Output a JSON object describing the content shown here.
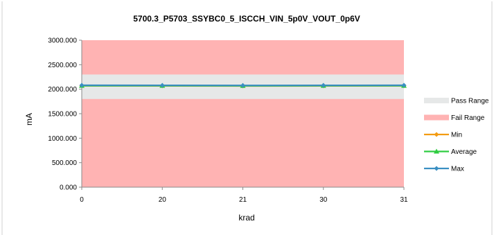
{
  "chart_data": {
    "type": "line",
    "title": "5700.3_P5703_SSYBC0_5_ISCCH_VIN_5p0V_VOUT_0p6V",
    "xlabel": "krad",
    "ylabel": "mA",
    "categories": [
      "0",
      "20",
      "21",
      "30",
      "31"
    ],
    "y_tick_labels": [
      "0.000",
      "500.000",
      "1000.000",
      "1500.000",
      "2000.000",
      "2500.000",
      "3000.000"
    ],
    "ylim": [
      0,
      3000
    ],
    "grid": false,
    "legend_position": "right",
    "bands": [
      {
        "name": "Pass Range",
        "from": 1800,
        "to": 2300,
        "color": "#e6e8e8"
      },
      {
        "name": "Fail Range",
        "from": 0,
        "to": 3000,
        "color": "#ffb3b3"
      }
    ],
    "series": [
      {
        "name": "Min",
        "values": [
          2070,
          2068,
          2066,
          2068,
          2069
        ],
        "color": "#f39c12",
        "marker": "diamond"
      },
      {
        "name": "Average",
        "values": [
          2072,
          2071,
          2070,
          2071,
          2072
        ],
        "color": "#2ecc40",
        "marker": "triangle"
      },
      {
        "name": "Max",
        "values": [
          2080,
          2078,
          2076,
          2078,
          2080
        ],
        "color": "#3a8fc2",
        "marker": "diamond"
      }
    ]
  }
}
